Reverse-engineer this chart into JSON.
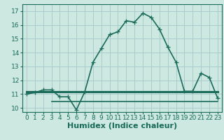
{
  "title": "",
  "xlabel": "Humidex (Indice chaleur)",
  "ylabel": "",
  "background_color": "#cce8e0",
  "grid_color": "#aacccc",
  "line_color": "#1a6b5a",
  "xlim": [
    -0.5,
    23.5
  ],
  "ylim": [
    9.7,
    17.5
  ],
  "xticks": [
    0,
    1,
    2,
    3,
    4,
    5,
    6,
    7,
    8,
    9,
    10,
    11,
    12,
    13,
    14,
    15,
    16,
    17,
    18,
    19,
    20,
    21,
    22,
    23
  ],
  "yticks": [
    10,
    11,
    12,
    13,
    14,
    15,
    16,
    17
  ],
  "main_x": [
    0,
    1,
    2,
    3,
    4,
    5,
    6,
    7,
    8,
    9,
    10,
    11,
    12,
    13,
    14,
    15,
    16,
    17,
    18,
    19,
    20,
    21,
    22,
    23
  ],
  "main_y": [
    11.0,
    11.1,
    11.3,
    11.3,
    10.8,
    10.8,
    9.85,
    11.15,
    13.3,
    14.3,
    15.3,
    15.5,
    16.3,
    16.2,
    16.85,
    16.55,
    15.7,
    14.4,
    13.3,
    11.2,
    11.2,
    12.5,
    12.2,
    10.7
  ],
  "hline1_x": [
    0,
    23
  ],
  "hline1_y": [
    11.15,
    11.15
  ],
  "hline2_x": [
    3,
    23
  ],
  "hline2_y": [
    10.45,
    10.45
  ],
  "marker_size": 4.0,
  "linewidth": 1.2,
  "xlabel_fontsize": 8,
  "tick_fontsize": 6.5,
  "hline1_lw": 2.2,
  "hline2_lw": 1.2
}
